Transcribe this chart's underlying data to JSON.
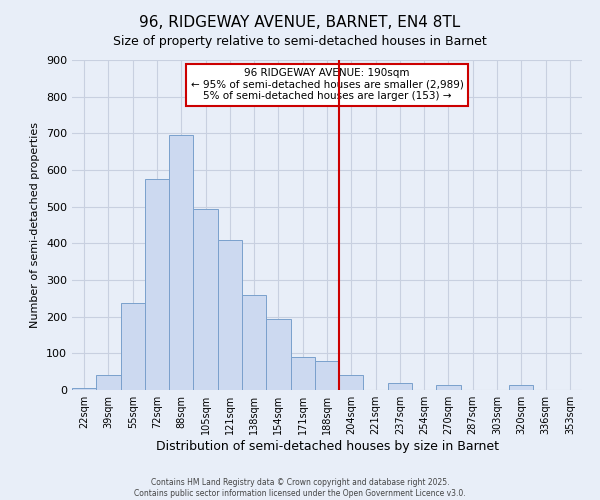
{
  "title": "96, RIDGEWAY AVENUE, BARNET, EN4 8TL",
  "subtitle": "Size of property relative to semi-detached houses in Barnet",
  "xlabel": "Distribution of semi-detached houses by size in Barnet",
  "ylabel": "Number of semi-detached properties",
  "bin_labels": [
    "22sqm",
    "39sqm",
    "55sqm",
    "72sqm",
    "88sqm",
    "105sqm",
    "121sqm",
    "138sqm",
    "154sqm",
    "171sqm",
    "188sqm",
    "204sqm",
    "221sqm",
    "237sqm",
    "254sqm",
    "270sqm",
    "287sqm",
    "303sqm",
    "320sqm",
    "336sqm",
    "353sqm"
  ],
  "bar_heights": [
    5,
    40,
    238,
    575,
    695,
    495,
    410,
    260,
    195,
    90,
    80,
    40,
    0,
    20,
    0,
    15,
    0,
    0,
    15,
    0,
    0
  ],
  "bar_color": "#ccd9f0",
  "bar_edgecolor": "#7aA0cc",
  "vline_bar_index": 10,
  "vline_color": "#cc0000",
  "annotation_title": "96 RIDGEWAY AVENUE: 190sqm",
  "annotation_line1": "← 95% of semi-detached houses are smaller (2,989)",
  "annotation_line2": "5% of semi-detached houses are larger (153) →",
  "annotation_box_facecolor": "#ffffff",
  "annotation_box_edgecolor": "#cc0000",
  "ylim": [
    0,
    900
  ],
  "yticks": [
    0,
    100,
    200,
    300,
    400,
    500,
    600,
    700,
    800,
    900
  ],
  "footer_line1": "Contains HM Land Registry data © Crown copyright and database right 2025.",
  "footer_line2": "Contains public sector information licensed under the Open Government Licence v3.0.",
  "background_color": "#e8eef8",
  "grid_color": "#c8d0e0",
  "title_fontsize": 11,
  "subtitle_fontsize": 9,
  "xlabel_fontsize": 9,
  "ylabel_fontsize": 8
}
